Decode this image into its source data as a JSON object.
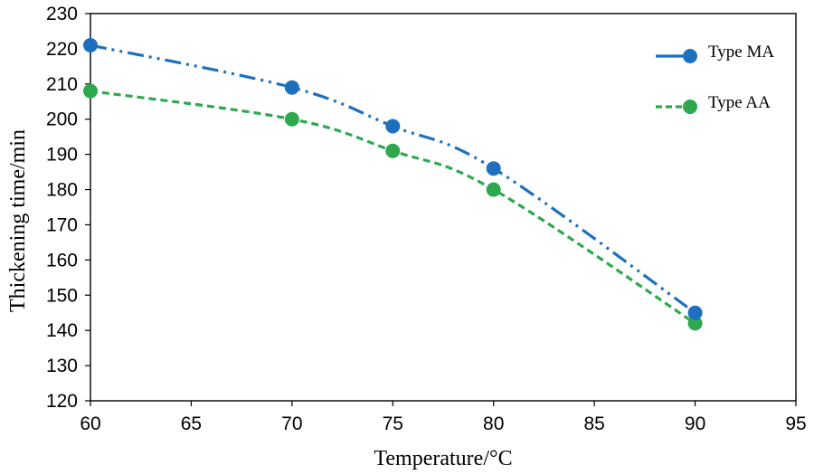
{
  "chart_data": {
    "type": "line",
    "title": "",
    "xlabel": "Temperature/°C",
    "ylabel": "Thickening time/min",
    "xlim": [
      60,
      95
    ],
    "ylim": [
      120,
      230
    ],
    "xticks": [
      60,
      65,
      70,
      75,
      80,
      85,
      90,
      95
    ],
    "yticks": [
      120,
      130,
      140,
      150,
      160,
      170,
      180,
      190,
      200,
      210,
      220,
      230
    ],
    "grid": false,
    "legend_position": "top-right",
    "series": [
      {
        "name": "Type MA",
        "color": "#1f6fbf",
        "line_style": "dash-dot-dot",
        "x": [
          60,
          70,
          75,
          80,
          90
        ],
        "y": [
          221,
          209,
          198,
          186,
          145
        ]
      },
      {
        "name": "Type AA",
        "color": "#2ea84f",
        "line_style": "dashed",
        "x": [
          60,
          70,
          75,
          80,
          90
        ],
        "y": [
          208,
          200,
          191,
          180,
          142
        ]
      }
    ]
  }
}
